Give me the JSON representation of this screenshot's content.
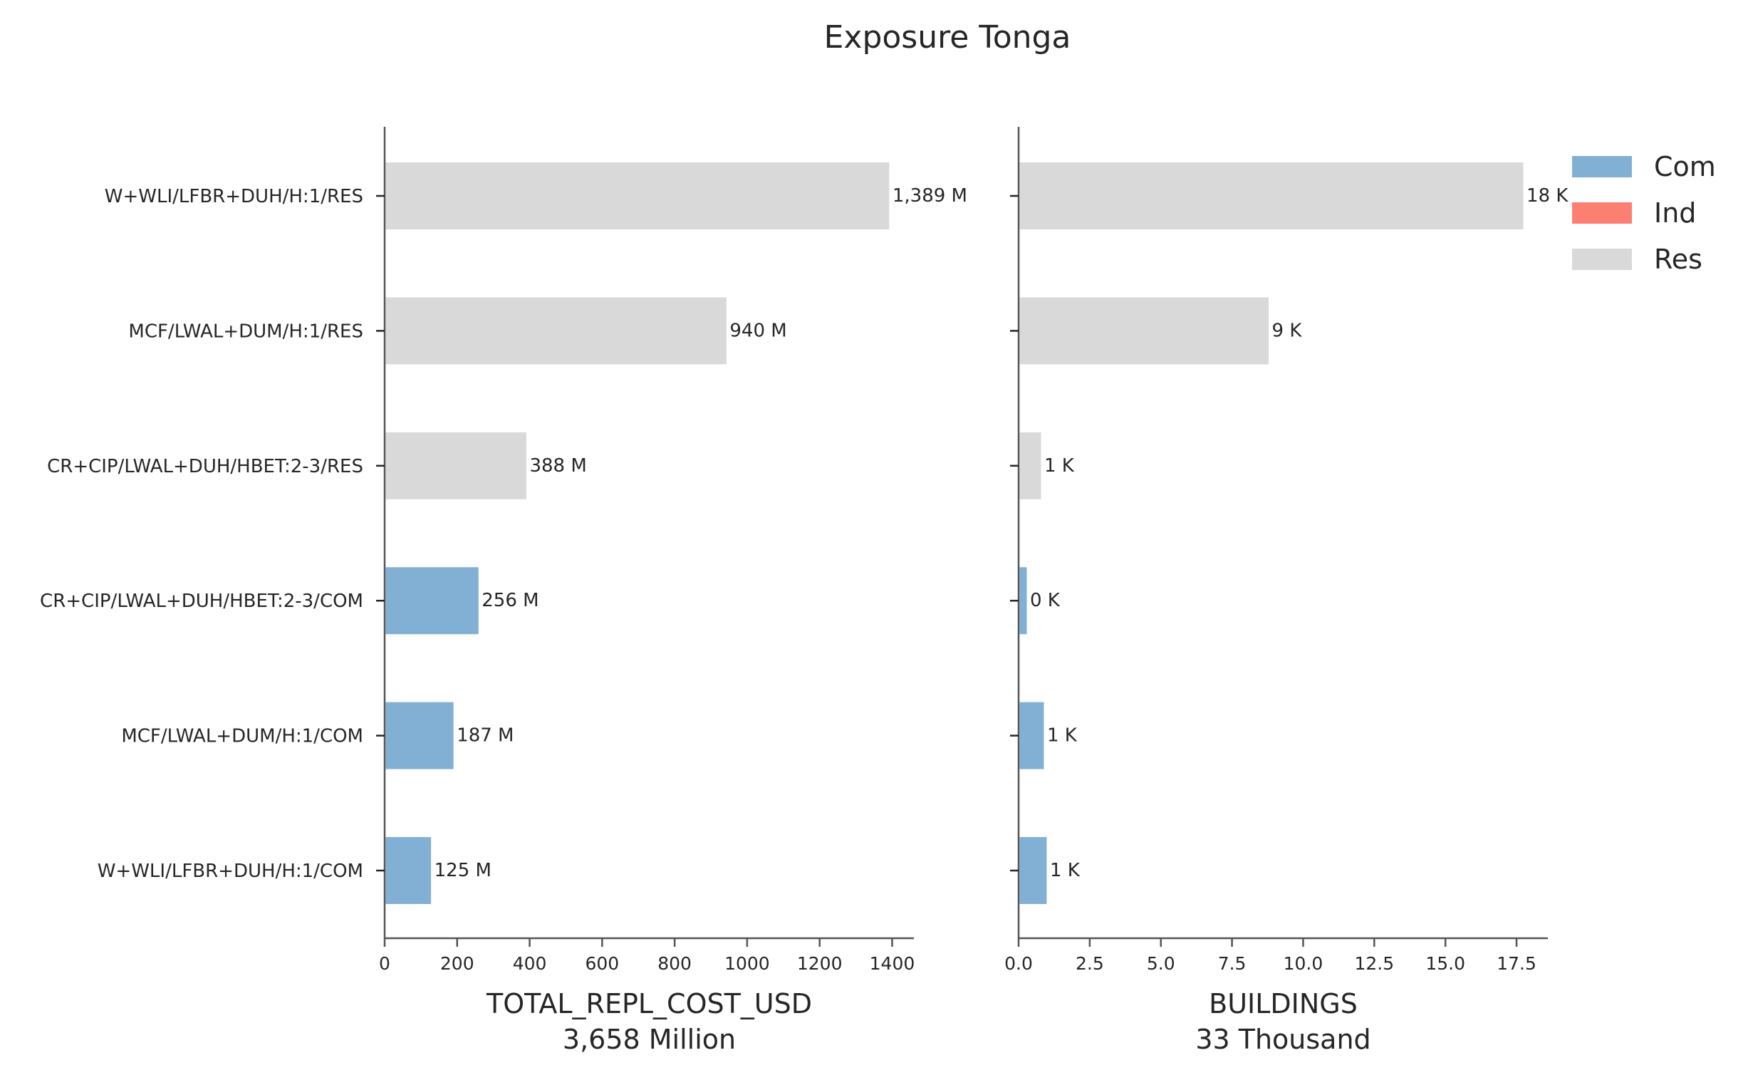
{
  "chart_data": {
    "title": "Exposure Tonga",
    "type": "bar",
    "orientation": "horizontal",
    "categories": [
      "W+WLI/LFBR+DUH/H:1/RES",
      "MCF/LWAL+DUM/H:1/RES",
      "CR+CIP/LWAL+DUH/HBET:2-3/RES",
      "CR+CIP/LWAL+DUH/HBET:2-3/COM",
      "MCF/LWAL+DUM/H:1/COM",
      "W+WLI/LFBR+DUH/H:1/COM"
    ],
    "category_groups": [
      "Res",
      "Res",
      "Res",
      "Com",
      "Com",
      "Com"
    ],
    "legend": {
      "position": "top-right",
      "items": [
        {
          "name": "Com",
          "color": "#82b0d4"
        },
        {
          "name": "Ind",
          "color": "#fb8072"
        },
        {
          "name": "Res",
          "color": "#d9d9d9"
        }
      ]
    },
    "panels": [
      {
        "xlabel": "TOTAL_REPL_COST_USD",
        "xlabel_sub": "3,658 Million",
        "values": [
          1389,
          940,
          388,
          256,
          187,
          125
        ],
        "data_labels": [
          "1,389 M",
          "940 M",
          "388 M",
          "256 M",
          "187 M",
          "125 M"
        ],
        "xlim": [
          0,
          1460
        ],
        "xticks": [
          0,
          200,
          400,
          600,
          800,
          1000,
          1200,
          1400
        ],
        "xtick_labels": [
          "0",
          "200",
          "400",
          "600",
          "800",
          "1000",
          "1200",
          "1400"
        ]
      },
      {
        "xlabel": "BUILDINGS",
        "xlabel_sub": "33 Thousand",
        "values": [
          17.7,
          8.75,
          0.75,
          0.25,
          0.85,
          0.95
        ],
        "data_labels": [
          "18 K",
          "9 K",
          "1 K",
          "0 K",
          "1 K",
          "1 K"
        ],
        "xlim": [
          0,
          18.6
        ],
        "xticks": [
          0,
          2.5,
          5,
          7.5,
          10,
          12.5,
          15,
          17.5
        ],
        "xtick_labels": [
          "0.0",
          "2.5",
          "5.0",
          "7.5",
          "10.0",
          "12.5",
          "15.0",
          "17.5"
        ]
      }
    ]
  }
}
